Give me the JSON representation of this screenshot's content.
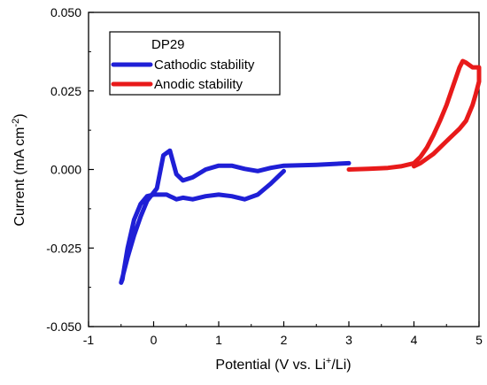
{
  "chart_data": {
    "type": "line",
    "x_range": [
      -1,
      5
    ],
    "y_range": [
      -0.05,
      0.05
    ],
    "x_ticks": [
      "-1",
      "0",
      "1",
      "2",
      "3",
      "4",
      "5"
    ],
    "y_ticks": [
      "-0.050",
      "-0.025",
      "0.000",
      "0.025",
      "0.050"
    ],
    "x_tick_values": [
      -1,
      0,
      1,
      2,
      3,
      4,
      5
    ],
    "y_tick_values": [
      -0.05,
      -0.025,
      0.0,
      0.025,
      0.05
    ],
    "xlabel": {
      "main": "Potential (V vs. Li",
      "sup": "+",
      "tail": "/Li)"
    },
    "ylabel": {
      "main": "Current (mA cm",
      "sup": "-2",
      "tail": ")"
    },
    "grid": false,
    "legend": {
      "title": "DP29",
      "placement": "top-left"
    },
    "series": [
      {
        "name": "Cathodic stability",
        "color": "#1f1fd6",
        "x": [
          3.0,
          2.5,
          2.0,
          1.8,
          1.6,
          1.4,
          1.2,
          1.0,
          0.8,
          0.6,
          0.45,
          0.35,
          0.25,
          0.15,
          0.05,
          -0.1,
          -0.2,
          -0.3,
          -0.4,
          -0.5,
          -0.48,
          -0.4,
          -0.3,
          -0.2,
          -0.1,
          0.0,
          0.1,
          0.2,
          0.25,
          0.3,
          0.35,
          0.45,
          0.6,
          0.8,
          1.0,
          1.2,
          1.4,
          1.6,
          1.8,
          1.9,
          2.0
        ],
        "y": [
          0.002,
          0.0015,
          0.0012,
          0.0005,
          -0.0005,
          0.0002,
          0.0012,
          0.0012,
          0.0,
          -0.0025,
          -0.0035,
          -0.0015,
          0.006,
          0.0045,
          -0.006,
          -0.01,
          -0.015,
          -0.021,
          -0.028,
          -0.036,
          -0.035,
          -0.025,
          -0.016,
          -0.011,
          -0.0085,
          -0.008,
          -0.008,
          -0.008,
          -0.0085,
          -0.009,
          -0.0095,
          -0.009,
          -0.0095,
          -0.0085,
          -0.008,
          -0.0085,
          -0.0095,
          -0.008,
          -0.0045,
          -0.0025,
          -0.0005
        ]
      },
      {
        "name": "Anodic stability",
        "color": "#e81a1a",
        "x": [
          3.0,
          3.3,
          3.6,
          3.8,
          4.0,
          4.1,
          4.2,
          4.3,
          4.4,
          4.5,
          4.6,
          4.7,
          4.75,
          4.8,
          4.9,
          5.0,
          5.0,
          4.95,
          4.9,
          4.85,
          4.8,
          4.7,
          4.6,
          4.5,
          4.4,
          4.3,
          4.2,
          4.1,
          4.0
        ],
        "y": [
          0.0,
          0.0002,
          0.0005,
          0.001,
          0.002,
          0.004,
          0.007,
          0.011,
          0.0155,
          0.0205,
          0.0265,
          0.0325,
          0.0345,
          0.034,
          0.0325,
          0.0325,
          0.028,
          0.024,
          0.0205,
          0.018,
          0.0155,
          0.013,
          0.011,
          0.009,
          0.007,
          0.005,
          0.0035,
          0.002,
          0.001
        ]
      }
    ]
  }
}
